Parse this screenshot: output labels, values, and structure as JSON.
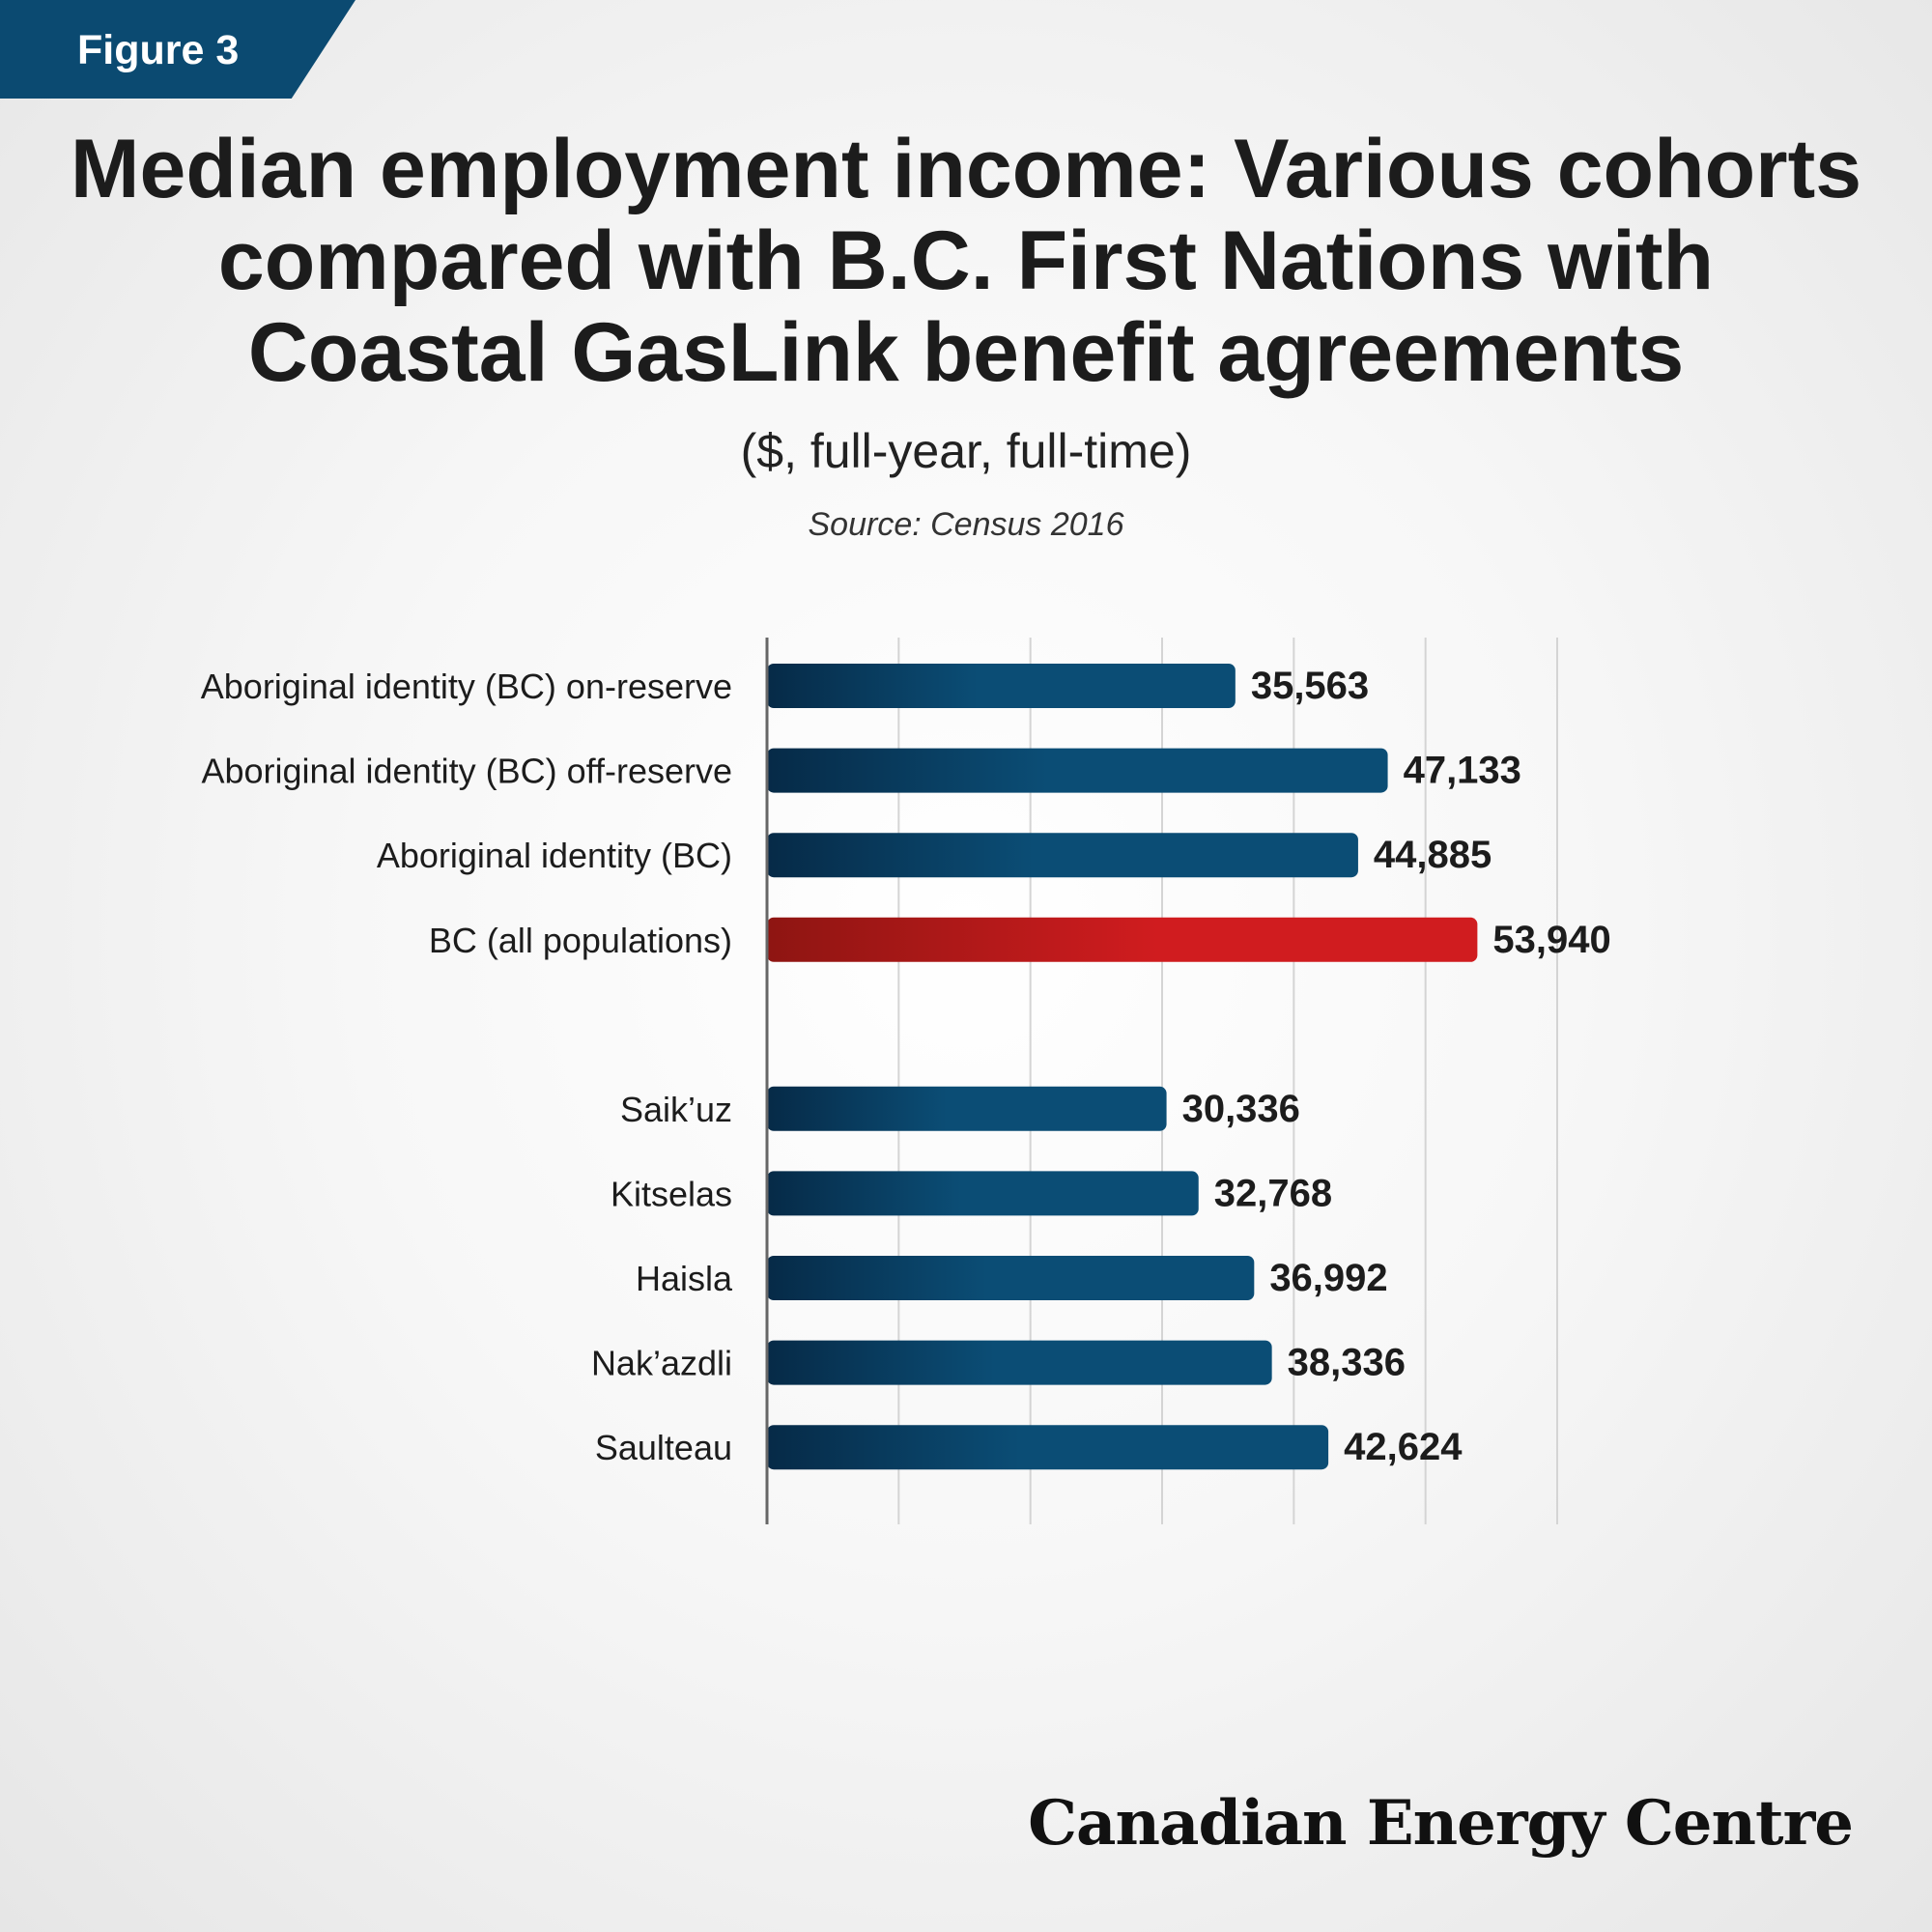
{
  "figure_label": "Figure 3",
  "brand": "Canadian Energy Centre",
  "colors": {
    "bar_dark": "#062a47",
    "bar_light": "#0b4d75",
    "highlight_dark": "#8e1512",
    "highlight_light": "#d01c1f",
    "gridline": "#d4d4d4",
    "axis": "#666666"
  },
  "chart_data": {
    "type": "bar",
    "orientation": "horizontal",
    "title": "Median employment income: Various cohorts compared with B.C. First Nations with Coastal GasLink benefit agreements",
    "subtitle": "($, full-year, full-time)",
    "source": "Source: Census 2016",
    "xlim": [
      0,
      60000
    ],
    "grid": true,
    "groups": [
      {
        "categories": [
          "Aboriginal identity (BC) on-reserve",
          "Aboriginal identity (BC) off-reserve",
          "Aboriginal identity (BC)",
          "BC (all populations)"
        ],
        "values": [
          35563,
          47133,
          44885,
          53940
        ],
        "labels": [
          "35,563",
          "47,133",
          "44,885",
          "53,940"
        ],
        "highlight": [
          false,
          false,
          false,
          true
        ]
      },
      {
        "categories": [
          "Saik’uz",
          "Kitselas",
          "Haisla",
          "Nak’azdli",
          "Saulteau"
        ],
        "values": [
          30336,
          32768,
          36992,
          38336,
          42624
        ],
        "labels": [
          "30,336",
          "32,768",
          "36,992",
          "38,336",
          "42,624"
        ],
        "highlight": [
          false,
          false,
          false,
          false,
          false
        ]
      }
    ]
  }
}
